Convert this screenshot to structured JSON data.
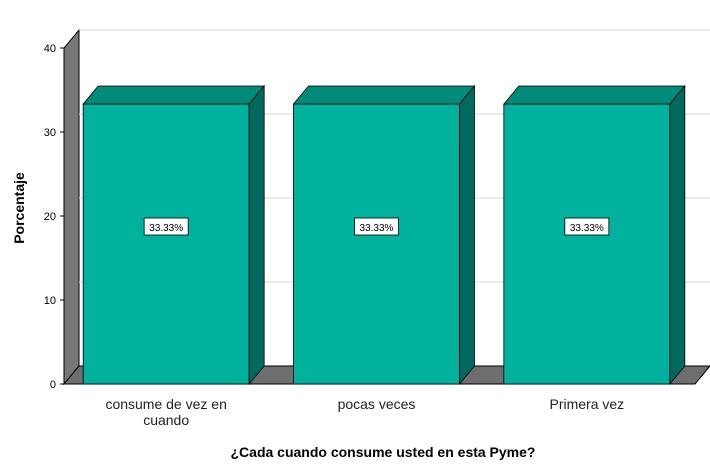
{
  "chart_data": {
    "type": "bar",
    "title": "",
    "xlabel": "¿Cada cuando consume usted en esta Pyme?",
    "ylabel": "Porcentaje",
    "categories": [
      [
        "consume de vez en",
        "cuando"
      ],
      [
        "pocas veces"
      ],
      [
        "Primera vez"
      ]
    ],
    "values": [
      33.33,
      33.33,
      33.33
    ],
    "data_labels": [
      "33.33%",
      "33.33%",
      "33.33%"
    ],
    "ylim": [
      0,
      40
    ],
    "yticks": [
      "0",
      "10",
      "20",
      "30",
      "40"
    ],
    "grid": true,
    "style": "3d",
    "colors": {
      "bar_front": "#00b19e",
      "bar_top": "#008a7a",
      "bar_side": "#006a5e",
      "wall_left": "#787878",
      "floor": "#6e6e6e",
      "gridline": "#d9d9d9",
      "axis": "#000000"
    }
  }
}
